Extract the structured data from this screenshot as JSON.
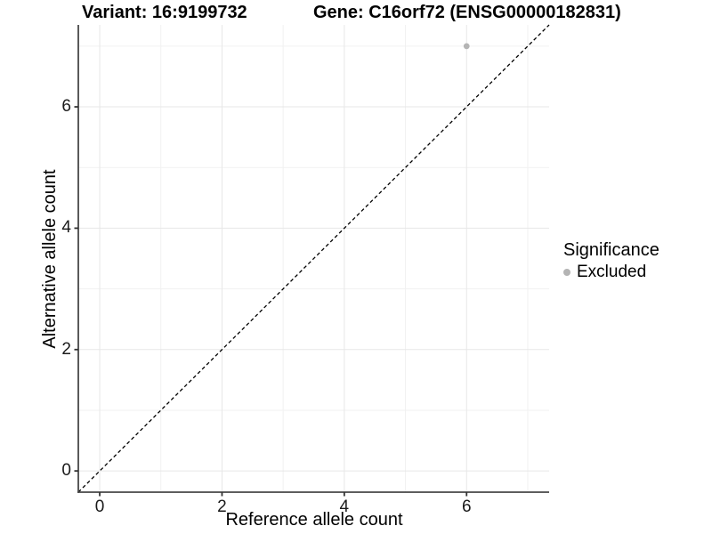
{
  "titles": {
    "variant": "Variant: 16:9199732",
    "gene": "Gene: C16orf72 (ENSG00000182831)"
  },
  "axes": {
    "x": {
      "label": "Reference allele count",
      "tick_labels": [
        "0",
        "2",
        "4",
        "6"
      ]
    },
    "y": {
      "label": "Alternative allele count",
      "tick_labels": [
        "0",
        "2",
        "4",
        "6"
      ]
    }
  },
  "legend": {
    "title": "Significance",
    "items": [
      {
        "label": "Excluded",
        "marker_color": "#b4b4b4"
      }
    ]
  },
  "chart_data": {
    "type": "scatter",
    "title": "Variant: 16:9199732 | Gene: C16orf72 (ENSG00000182831)",
    "xlabel": "Reference allele count",
    "ylabel": "Alternative allele count",
    "xlim": [
      -0.35,
      7.35
    ],
    "ylim": [
      -0.35,
      7.35
    ],
    "x_major_ticks": [
      0,
      2,
      4,
      6
    ],
    "x_minor_ticks": [
      1,
      3,
      5,
      7
    ],
    "y_major_ticks": [
      0,
      2,
      4,
      6
    ],
    "y_minor_ticks": [
      1,
      3,
      5,
      7
    ],
    "grid": true,
    "legend_position": "right",
    "series": [
      {
        "name": "Excluded",
        "color": "#b4b4b4",
        "points": [
          {
            "x": 6,
            "y": 7
          }
        ]
      }
    ],
    "reference_line": {
      "kind": "identity",
      "slope": 1,
      "intercept": 0,
      "style": "dashed",
      "color": "#000000"
    },
    "colors": {
      "background": "#ffffff",
      "major_grid": "#e7e7e7",
      "minor_grid": "#f1f1f1",
      "axis_line": "#474747",
      "tick_mark": "#333333",
      "point": "#b4b4b4"
    }
  }
}
